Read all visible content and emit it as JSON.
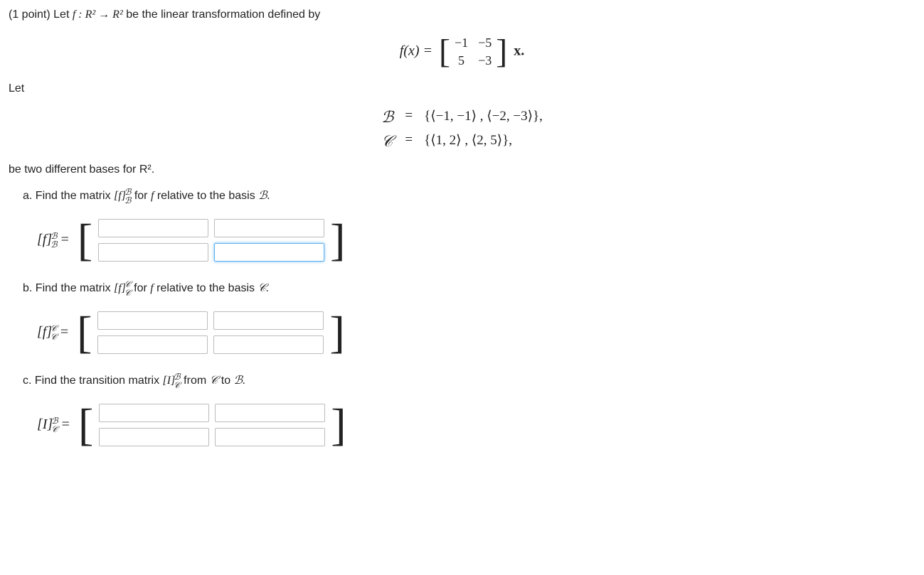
{
  "question_prefix": "(1 point) Let ",
  "question_func": "f : R² → R²",
  "question_suffix": " be the linear transformation defined by",
  "fx_lhs": "f(x)  =",
  "fx_rhs_suffix": " x.",
  "matrix_A": {
    "r1c1": "−1",
    "r1c2": "−5",
    "r2c1": "5",
    "r2c2": "−3"
  },
  "let_text": "Let",
  "basis_B_label": "ℬ",
  "basis_C_label": "𝒞",
  "eq_sign": "=",
  "basis_B_value": "{⟨−1, −1⟩ , ⟨−2, −3⟩},",
  "basis_C_value": "{⟨1, 2⟩ , ⟨2, 5⟩},",
  "bases_footer": "be two different bases for R².",
  "part_a": {
    "prefix": "a. Find the matrix ",
    "symbol_base": "[f]",
    "sup": "ℬ",
    "sub": "ℬ",
    "mid": " for ",
    "mid2": "f",
    "suffix": " relative to the basis ",
    "basis": "ℬ.",
    "label_base": "[f]",
    "label_sup": "ℬ",
    "label_sub": "ℬ",
    "label_eq": " ="
  },
  "part_b": {
    "prefix": "b. Find the matrix ",
    "symbol_base": "[f]",
    "sup": "𝒞",
    "sub": "𝒞",
    "mid": " for ",
    "mid2": "f",
    "suffix": " relative to the basis ",
    "basis": "𝒞.",
    "label_base": "[f]",
    "label_sup": "𝒞",
    "label_sub": "𝒞",
    "label_eq": " ="
  },
  "part_c": {
    "prefix": "c. Find the transition matrix ",
    "symbol_base": "[I]",
    "sup": "ℬ",
    "sub": "𝒞",
    "mid": " from ",
    "from_basis": "𝒞",
    "to_word": " to ",
    "to_basis": "ℬ.",
    "label_base": "[I]",
    "label_sup": "ℬ",
    "label_sub": "𝒞",
    "label_eq": " ="
  }
}
